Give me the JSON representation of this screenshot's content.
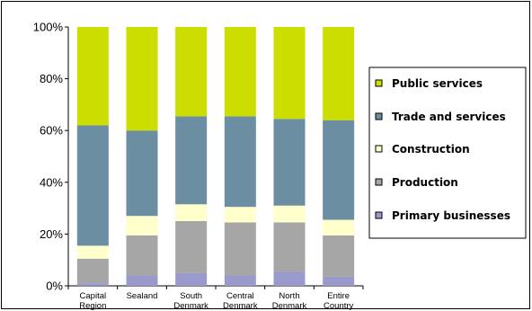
{
  "chart_data": {
    "type": "bar",
    "stacked": true,
    "normalized": true,
    "categories": [
      [
        "Capital",
        "Region"
      ],
      [
        "Sealand"
      ],
      [
        "South",
        "Denmark"
      ],
      [
        "Central",
        "Denmark"
      ],
      [
        "North",
        "Denmark"
      ],
      [
        "Entire",
        "Country"
      ]
    ],
    "ylim": [
      0,
      100
    ],
    "yticks": [
      "0%",
      "20%",
      "40%",
      "60%",
      "80%",
      "100%"
    ],
    "yticks_values": [
      0,
      20,
      40,
      60,
      80,
      100
    ],
    "grid": false,
    "legend_position": "right",
    "series": [
      {
        "name": "Primary businesses",
        "color": "#9999cc",
        "values": [
          1,
          4,
          5,
          4,
          5.5,
          3.5
        ]
      },
      {
        "name": "Production",
        "color": "#a6a6a6",
        "values": [
          9.5,
          15.5,
          20,
          20.5,
          19,
          16
        ]
      },
      {
        "name": "Construction",
        "color": "#ffffcc",
        "values": [
          5,
          7.5,
          6.5,
          6,
          6.5,
          6
        ]
      },
      {
        "name": "Trade and services",
        "color": "#6b8ea3",
        "values": [
          46.5,
          33,
          34,
          35,
          33.5,
          38.5
        ]
      },
      {
        "name": "Public services",
        "color": "#ccdd00",
        "values": [
          38,
          40,
          34.5,
          34.5,
          35.5,
          36
        ]
      }
    ],
    "legend_order": [
      "Public services",
      "Trade and services",
      "Construction",
      "Production",
      "Primary businesses"
    ]
  }
}
